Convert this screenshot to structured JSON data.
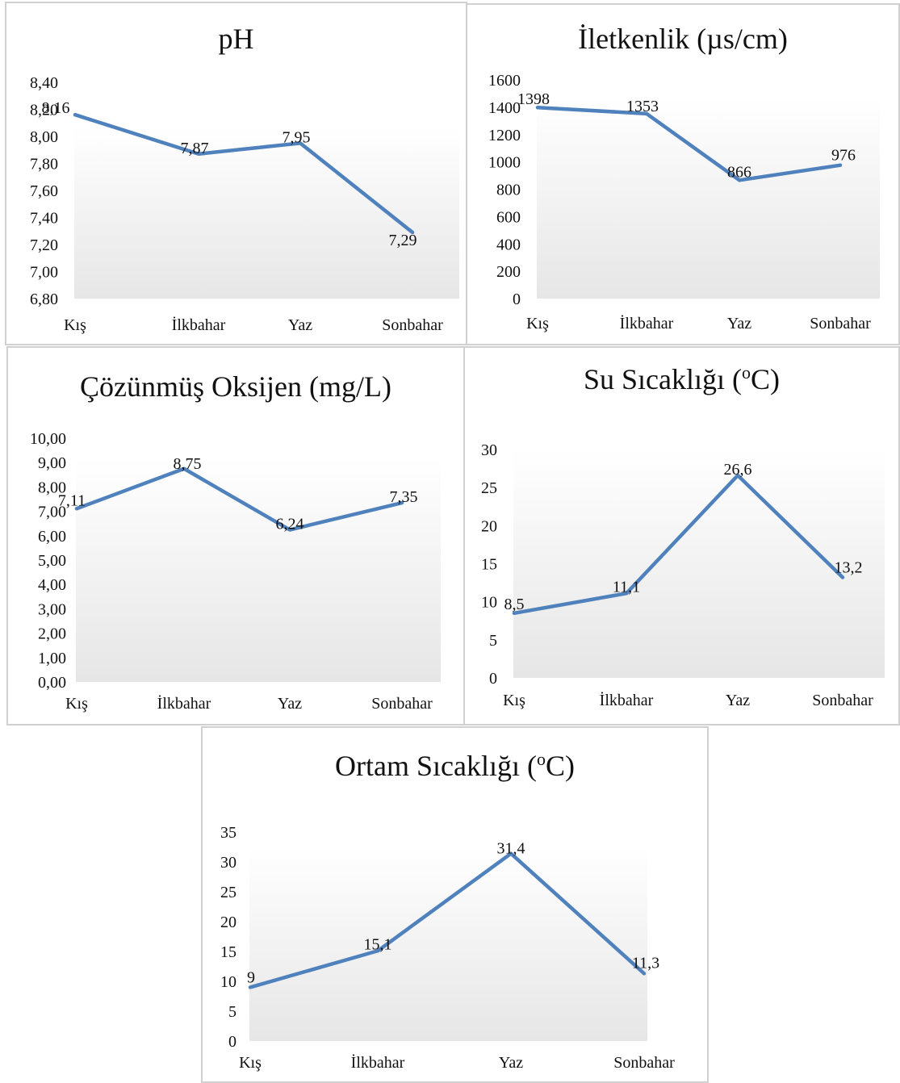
{
  "colors": {
    "line": "#4f81bd",
    "plot_gradient_top": "#ffffff",
    "plot_gradient_bottom": "#e6e6e6"
  },
  "chart_data": [
    {
      "type": "line",
      "title": "pH",
      "categories": [
        "Kış",
        "İlkbahar",
        "Yaz",
        "Sonbahar"
      ],
      "values": [
        8.16,
        7.87,
        7.95,
        7.29
      ],
      "value_labels": [
        "8,16",
        "7,87",
        "7,95",
        "7,29"
      ],
      "ylim": [
        6.8,
        8.4
      ],
      "yticks": [
        "6,80",
        "7,00",
        "7,20",
        "7,40",
        "7,60",
        "7,80",
        "8,00",
        "8,20",
        "8,40"
      ],
      "grid": false,
      "legend": "none"
    },
    {
      "type": "line",
      "title": "İletkenlik (µs/cm)",
      "categories": [
        "Kış",
        "İlkbahar",
        "Yaz",
        "Sonbahar"
      ],
      "values": [
        1398,
        1353,
        866,
        976
      ],
      "value_labels": [
        "1398",
        "1353",
        "866",
        "976"
      ],
      "ylim": [
        0,
        1600
      ],
      "yticks": [
        "0",
        "200",
        "400",
        "600",
        "800",
        "1000",
        "1200",
        "1400",
        "1600"
      ],
      "grid": false,
      "legend": "none"
    },
    {
      "type": "line",
      "title": "Çözünmüş Oksijen (mg/L)",
      "categories": [
        "Kış",
        "İlkbahar",
        "Yaz",
        "Sonbahar"
      ],
      "values": [
        7.11,
        8.75,
        6.24,
        7.35
      ],
      "value_labels": [
        "7,11",
        "8,75",
        "6,24",
        "7,35"
      ],
      "ylim": [
        0,
        10
      ],
      "yticks": [
        "0,00",
        "1,00",
        "2,00",
        "3,00",
        "4,00",
        "5,00",
        "6,00",
        "7,00",
        "8,00",
        "9,00",
        "10,00"
      ],
      "grid": false,
      "legend": "none"
    },
    {
      "type": "line",
      "title": "Su Sıcaklığı (",
      "title_sup": "o",
      "title_end": "C)",
      "categories": [
        "Kış",
        "İlkbahar",
        "Yaz",
        "Sonbahar"
      ],
      "values": [
        8.5,
        11.1,
        26.6,
        13.2
      ],
      "value_labels": [
        "8,5",
        "11,1",
        "26,6",
        "13,2"
      ],
      "ylim": [
        0,
        30
      ],
      "yticks": [
        "0",
        "5",
        "10",
        "15",
        "20",
        "25",
        "30"
      ],
      "grid": false,
      "legend": "none"
    },
    {
      "type": "line",
      "title": "Ortam Sıcaklığı (",
      "title_sup": "o",
      "title_end": "C)",
      "categories": [
        "Kış",
        "İlkbahar",
        "Yaz",
        "Sonbahar"
      ],
      "values": [
        9,
        15.1,
        31.4,
        11.3
      ],
      "value_labels": [
        "9",
        "15,1",
        "31,4",
        "11,3"
      ],
      "ylim": [
        0,
        35
      ],
      "yticks": [
        "0",
        "5",
        "10",
        "15",
        "20",
        "25",
        "30",
        "35"
      ],
      "grid": false,
      "legend": "none"
    }
  ]
}
